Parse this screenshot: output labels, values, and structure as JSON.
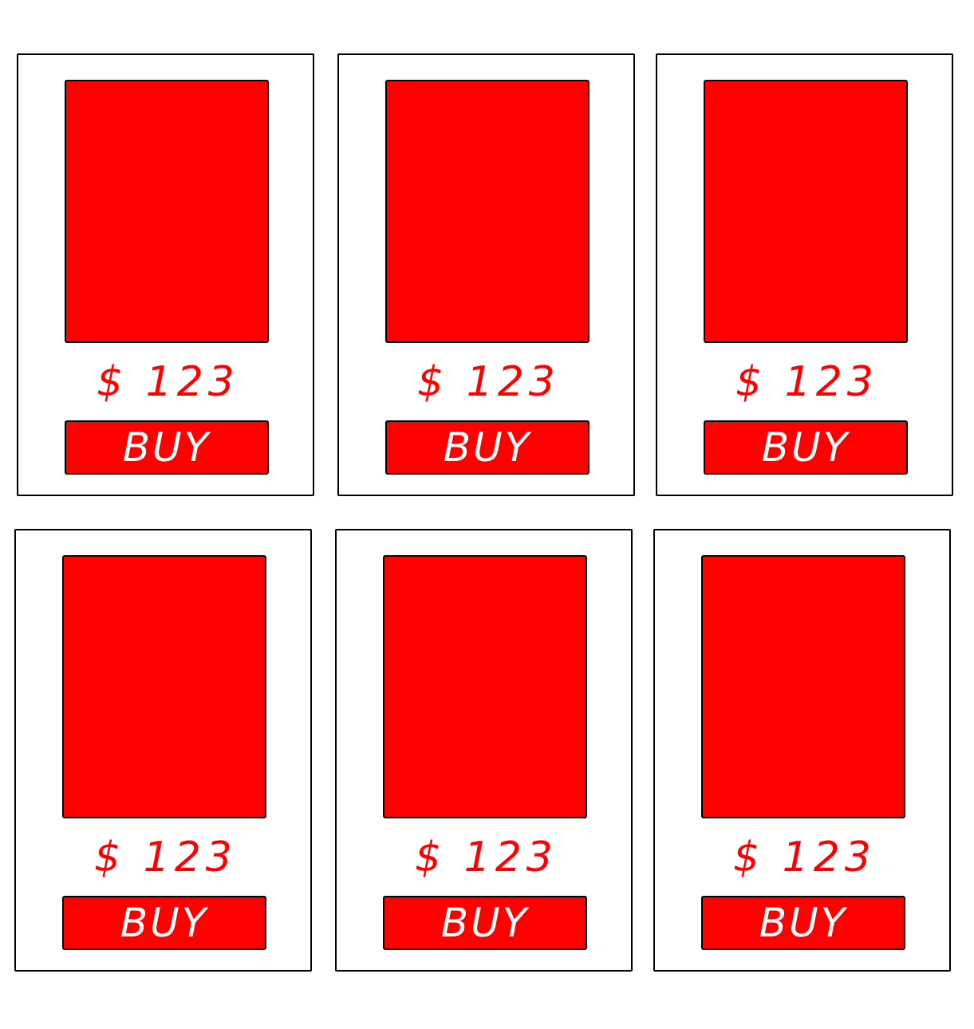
{
  "colors": {
    "accent": "#ff0000",
    "border": "#000000",
    "background": "#ffffff",
    "button_text": "#ffffff"
  },
  "products": [
    {
      "price": "$ 123",
      "buy_label": "BUY"
    },
    {
      "price": "$ 123",
      "buy_label": "BUY"
    },
    {
      "price": "$ 123",
      "buy_label": "BUY"
    },
    {
      "price": "$ 123",
      "buy_label": "BUY"
    },
    {
      "price": "$ 123",
      "buy_label": "BUY"
    },
    {
      "price": "$ 123",
      "buy_label": "BUY"
    }
  ]
}
